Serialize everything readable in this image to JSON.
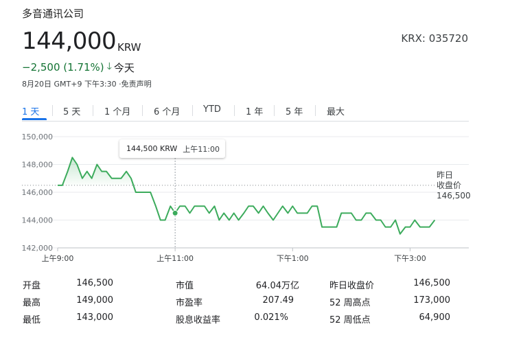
{
  "header": {
    "company": "多音通讯公司",
    "price": "144,000",
    "currency": "KRW",
    "ticker": "KRX: 035720",
    "change": "−2,500 (1.71%)",
    "change_period": "今天",
    "meta": "8月20日 GMT+9 下午3:30 ·免责声明"
  },
  "tabs": [
    "1 天",
    "5 天",
    "1 个月",
    "6 个月",
    "YTD",
    "1 年",
    "5 年",
    "最大"
  ],
  "tooltip": {
    "price": "144,500 KRW",
    "time": "上午11:00"
  },
  "prev_close": {
    "label1": "昨日",
    "label2": "收盘价",
    "value": "146,500"
  },
  "colors": {
    "up_down_green": "#137333",
    "line_green": "#3cab5c",
    "accent": "#1a73e8"
  },
  "chart_data": {
    "type": "line",
    "y_tick_labels": [
      "150,000",
      "148,000",
      "146,000",
      "144,000",
      "142,000"
    ],
    "x_tick_labels": [
      "上午9:00",
      "上午11:00",
      "下午1:00",
      "下午3:00"
    ],
    "ylim": [
      142000,
      150000
    ],
    "xlim_hours": [
      9,
      16
    ],
    "previous_close": 146500,
    "series": [
      {
        "x": [
          9.0,
          9.08,
          9.17,
          9.25,
          9.33,
          9.42,
          9.5,
          9.58,
          9.67,
          9.75,
          9.83,
          9.92,
          10.0,
          10.08,
          10.17,
          10.25,
          10.33,
          10.42,
          10.5,
          10.58,
          10.67,
          10.75,
          10.83,
          10.92,
          11.0,
          11.08,
          11.17,
          11.25,
          11.33,
          11.42,
          11.5,
          11.58,
          11.67,
          11.75,
          11.83,
          11.92,
          12.0,
          12.08,
          12.17,
          12.25,
          12.33,
          12.42,
          12.5,
          12.58,
          12.67,
          12.75,
          12.83,
          12.92,
          13.0,
          13.08,
          13.17,
          13.25,
          13.33,
          13.42,
          13.5,
          13.58,
          13.67,
          13.75,
          13.83,
          13.92,
          14.0,
          14.08,
          14.17,
          14.25,
          14.33,
          14.42,
          14.5,
          14.58,
          14.67,
          14.75,
          14.83,
          14.92,
          15.0,
          15.08,
          15.17,
          15.25,
          15.33,
          15.42
        ],
        "y": [
          146500,
          146500,
          147500,
          148500,
          148000,
          147000,
          147500,
          147000,
          148000,
          147500,
          147500,
          147000,
          147000,
          147000,
          147500,
          147000,
          146000,
          146000,
          146000,
          146000,
          145000,
          144000,
          144000,
          145000,
          144500,
          145000,
          145000,
          144500,
          145000,
          145000,
          145000,
          144500,
          145000,
          144000,
          144500,
          144000,
          144500,
          144000,
          144500,
          145000,
          145000,
          144500,
          145000,
          144500,
          144000,
          144500,
          145000,
          144500,
          145000,
          144500,
          144500,
          144500,
          145000,
          145000,
          143500,
          143500,
          143500,
          143500,
          144500,
          144500,
          144500,
          144000,
          144000,
          144500,
          144500,
          144000,
          144000,
          143500,
          143500,
          144000,
          143000,
          143500,
          143500,
          144000,
          143500,
          143500,
          143500,
          144000
        ]
      }
    ],
    "tooltip_point": {
      "x": 11.0,
      "y": 144500
    }
  },
  "stats": [
    {
      "label": "开盘",
      "value": "146,500"
    },
    {
      "label": "最高",
      "value": "149,000"
    },
    {
      "label": "最低",
      "value": "143,000"
    },
    {
      "label": "市值",
      "value": "64.04万亿"
    },
    {
      "label": "市盈率",
      "value": "207.49"
    },
    {
      "label": "股息收益率",
      "value": "0.021%"
    },
    {
      "label": "昨日收盘价",
      "value": "146,500"
    },
    {
      "label": "52 周高点",
      "value": "173,000"
    },
    {
      "label": "52 周低点",
      "value": "64,900"
    }
  ]
}
